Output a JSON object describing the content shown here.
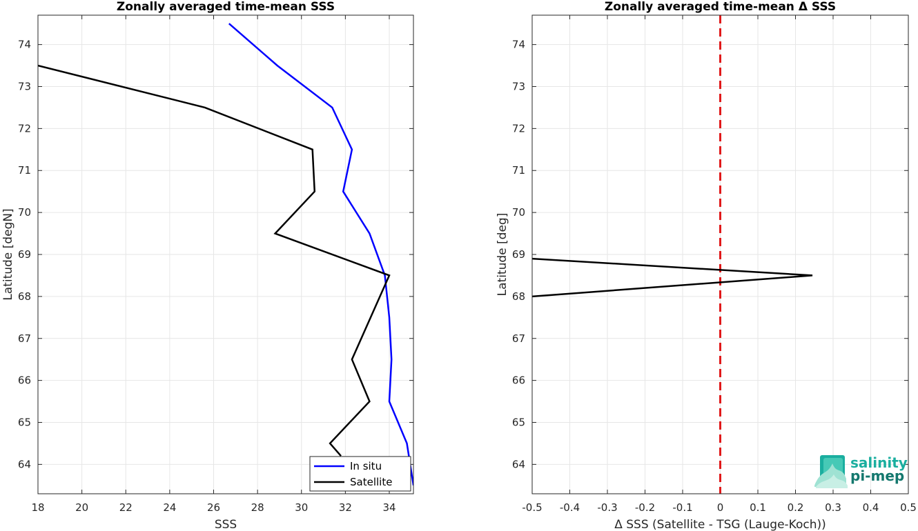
{
  "chart_data": [
    {
      "type": "line",
      "title": "Zonally averaged time-mean SSS",
      "xlabel": "SSS",
      "ylabel": "Latitude [degN]",
      "xlim": [
        18,
        35.1
      ],
      "ylim": [
        63.3,
        74.7
      ],
      "xticks": [
        18,
        20,
        22,
        24,
        26,
        28,
        30,
        32,
        34
      ],
      "yticks": [
        64,
        65,
        66,
        67,
        68,
        69,
        70,
        71,
        72,
        73,
        74
      ],
      "grid": true,
      "legend_position": "bottom-right",
      "series": [
        {
          "name": "In situ",
          "color": "#0000ff",
          "x": [
            26.7,
            28.9,
            31.4,
            32.3,
            31.9,
            33.1,
            33.8,
            34.0,
            34.1,
            34.0,
            34.8,
            35.1
          ],
          "y": [
            74.5,
            73.5,
            72.5,
            71.5,
            70.5,
            69.5,
            68.5,
            67.5,
            66.5,
            65.5,
            64.5,
            63.5
          ]
        },
        {
          "name": "Satellite",
          "color": "#000000",
          "x": [
            18.0,
            25.6,
            30.5,
            30.6,
            28.8,
            34.0,
            32.3,
            33.1,
            31.3,
            31.8
          ],
          "y": [
            73.5,
            72.5,
            71.5,
            70.5,
            69.5,
            68.5,
            66.5,
            65.5,
            64.5,
            64.2
          ]
        }
      ]
    },
    {
      "type": "line",
      "title": "Zonally averaged time-mean Δ SSS",
      "xlabel": "Δ SSS (Satellite - TSG (Lauge-Koch))",
      "ylabel": "Latitude [deg]",
      "xlim": [
        -0.5,
        0.5
      ],
      "ylim": [
        63.3,
        74.7
      ],
      "xticks": [
        -0.5,
        -0.4,
        -0.3,
        -0.2,
        -0.1,
        0,
        0.1,
        0.2,
        0.3,
        0.4,
        0.5
      ],
      "yticks": [
        64,
        65,
        66,
        67,
        68,
        69,
        70,
        71,
        72,
        73,
        74
      ],
      "grid": true,
      "reference_line": {
        "x": 0,
        "color": "#e0191a",
        "style": "dashed"
      },
      "series": [
        {
          "color": "#000000",
          "x": [
            -0.5,
            0.245,
            -0.5
          ],
          "y": [
            68.9,
            68.5,
            68.0
          ]
        }
      ]
    }
  ],
  "logo": {
    "line1": "salinity",
    "line2": "pi-mep",
    "text_color_1": "#1aae9f",
    "text_color_2": "#14786e"
  }
}
